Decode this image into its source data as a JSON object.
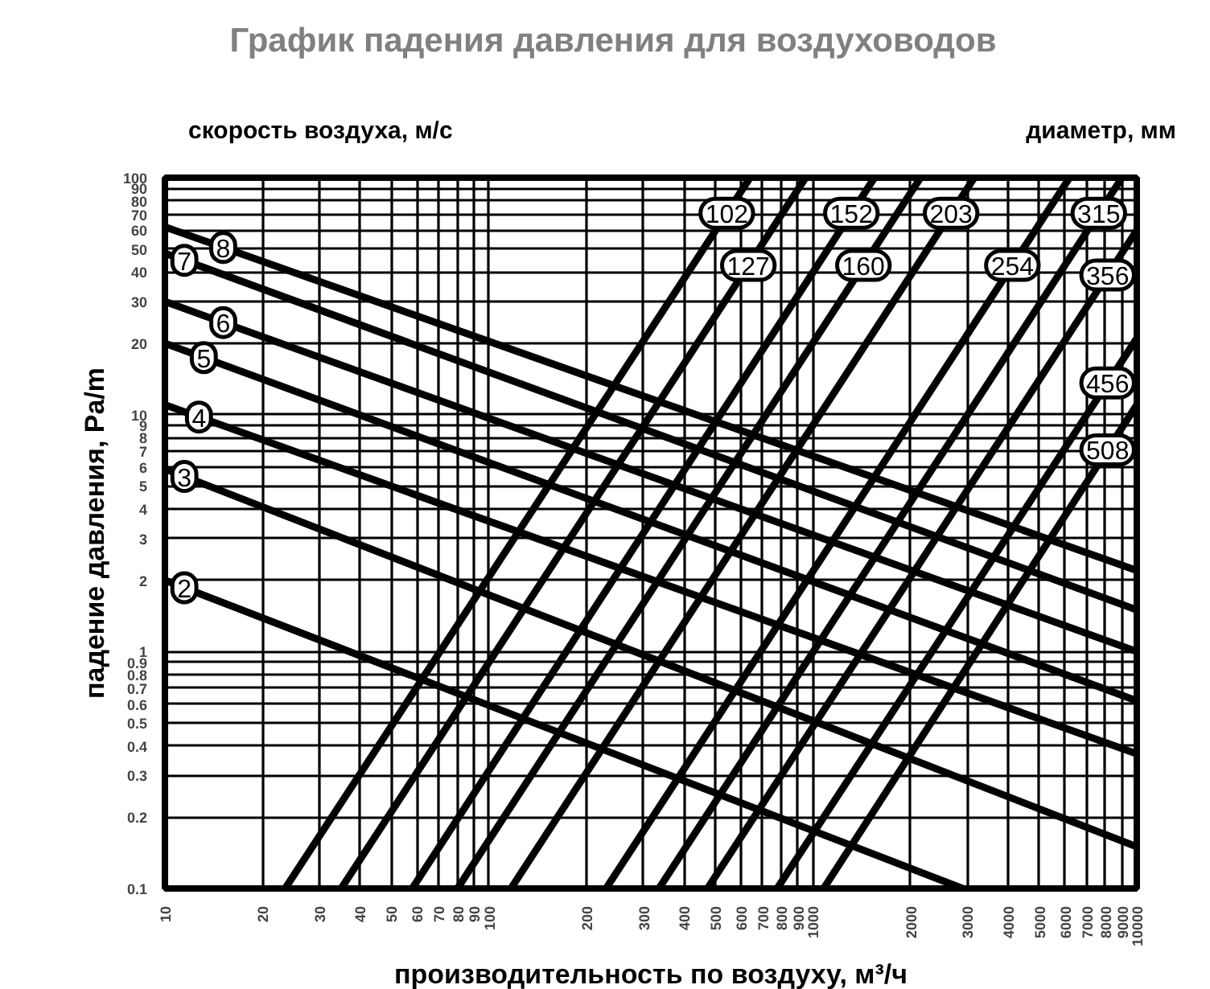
{
  "chart_data": {
    "type": "line",
    "title": "График падения давления для воздуховодов",
    "xlabel": "производительность по воздуху, м³/ч",
    "ylabel": "падение давления, Pa/m",
    "annotations": [
      "скорость воздуха, м/с",
      "диаметр, мм"
    ],
    "log": "xy",
    "grid": true,
    "legend": "top",
    "marker": "none",
    "line_style": "solid",
    "xlim": [
      10,
      10000
    ],
    "ylim": [
      0.1,
      100
    ],
    "xticks": [
      10,
      20,
      30,
      40,
      50,
      60,
      70,
      80,
      90,
      100,
      200,
      300,
      400,
      500,
      600,
      700,
      800,
      900,
      1000,
      2000,
      3000,
      4000,
      5000,
      6000,
      7000,
      8000,
      9000,
      10000
    ],
    "yticks": [
      0.1,
      0.2,
      0.3,
      0.4,
      0.5,
      0.6,
      0.7,
      0.8,
      0.9,
      1,
      2,
      3,
      4,
      5,
      6,
      7,
      8,
      9,
      10,
      20,
      30,
      40,
      50,
      60,
      70,
      80,
      90,
      100
    ],
    "series": [
      {
        "name": "8",
        "color": "#000000",
        "x": [
          10,
          10000
        ],
        "values": [
          62,
          2.2
        ]
      },
      {
        "name": "7",
        "color": "#000000",
        "x": [
          10,
          10000
        ],
        "values": [
          48,
          1.5
        ]
      },
      {
        "name": "6",
        "color": "#000000",
        "x": [
          10,
          10000
        ],
        "values": [
          30,
          1.0
        ]
      },
      {
        "name": "5",
        "color": "#000000",
        "x": [
          10,
          10000
        ],
        "values": [
          20,
          0.62
        ]
      },
      {
        "name": "4",
        "color": "#000000",
        "x": [
          10,
          10000
        ],
        "values": [
          11,
          0.37
        ]
      },
      {
        "name": "3",
        "color": "#000000",
        "x": [
          10,
          10000
        ],
        "values": [
          5.9,
          0.15
        ]
      },
      {
        "name": "2",
        "color": "#000000",
        "x": [
          10,
          2900
        ],
        "values": [
          2,
          0.1
        ]
      },
      {
        "name": "102",
        "color": "#000000",
        "x": [
          23.5,
          640
        ],
        "values": [
          0.1,
          100
        ]
      },
      {
        "name": "127",
        "color": "#000000",
        "x": [
          35,
          950
        ],
        "values": [
          0.1,
          100
        ]
      },
      {
        "name": "152",
        "color": "#000000",
        "x": [
          58,
          1550
        ],
        "values": [
          0.1,
          100
        ]
      },
      {
        "name": "160",
        "color": "#000000",
        "x": [
          80,
          2150
        ],
        "values": [
          0.1,
          100
        ]
      },
      {
        "name": "203",
        "color": "#000000",
        "x": [
          117,
          3150
        ],
        "values": [
          0.1,
          100
        ]
      },
      {
        "name": "254",
        "color": "#000000",
        "x": [
          230,
          6200
        ],
        "values": [
          0.1,
          100
        ]
      },
      {
        "name": "315",
        "color": "#000000",
        "x": [
          335,
          9000
        ],
        "values": [
          0.1,
          100
        ]
      },
      {
        "name": "356",
        "color": "#000000",
        "x": [
          473,
          10000
        ],
        "values": [
          0.1,
          60
        ]
      },
      {
        "name": "456",
        "color": "#000000",
        "x": [
          776,
          10000
        ],
        "values": [
          0.1,
          21
        ]
      },
      {
        "name": "508",
        "color": "#000000",
        "x": [
          1080,
          10000
        ],
        "values": [
          0.1,
          11
        ]
      }
    ]
  }
}
